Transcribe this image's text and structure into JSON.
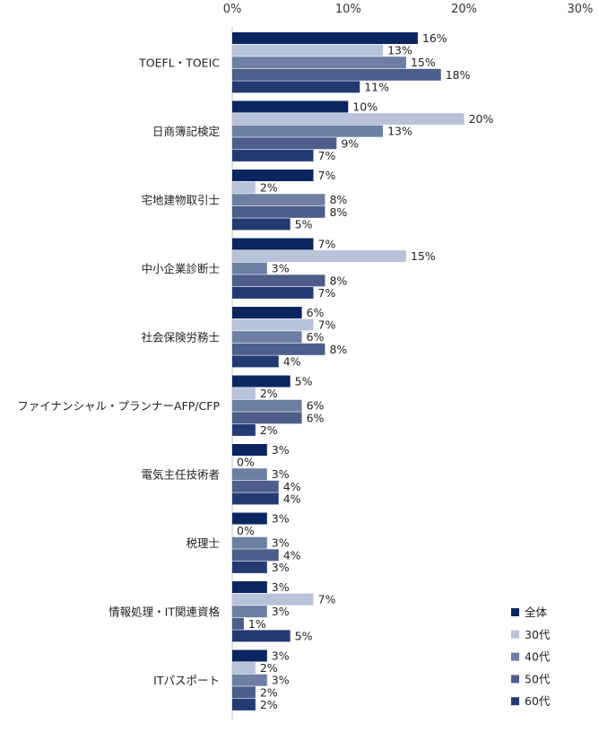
{
  "chart_data": {
    "type": "bar",
    "orientation": "horizontal",
    "x_ticks": [
      "0%",
      "10%",
      "20%",
      "30%"
    ],
    "xlim": [
      0,
      30
    ],
    "unit": "%",
    "categories": [
      "TOEFL・TOEIC",
      "日商簿記検定",
      "宅地建物取引士",
      "中小企業診断士",
      "社会保険労務士",
      "ファイナンシャル・プランナーAFP/CFP",
      "電気主任技術者",
      "税理士",
      "情報処理・IT関連資格",
      "ITパスポート"
    ],
    "series": [
      {
        "name": "全体",
        "color": "#0b2560",
        "values": [
          16,
          10,
          7,
          7,
          6,
          5,
          3,
          3,
          3,
          3
        ]
      },
      {
        "name": "30代",
        "color": "#b8c2d8",
        "values": [
          13,
          20,
          2,
          15,
          7,
          2,
          0,
          0,
          7,
          2
        ]
      },
      {
        "name": "40代",
        "color": "#6e7fa5",
        "values": [
          15,
          13,
          8,
          3,
          6,
          6,
          3,
          3,
          3,
          3
        ]
      },
      {
        "name": "50代",
        "color": "#4d5e8b",
        "values": [
          18,
          9,
          8,
          8,
          8,
          6,
          4,
          4,
          1,
          2
        ]
      },
      {
        "name": "60代",
        "color": "#233a73",
        "values": [
          11,
          7,
          5,
          7,
          4,
          2,
          4,
          3,
          5,
          2
        ]
      }
    ],
    "legend_position": "bottom-right",
    "grid": false
  }
}
